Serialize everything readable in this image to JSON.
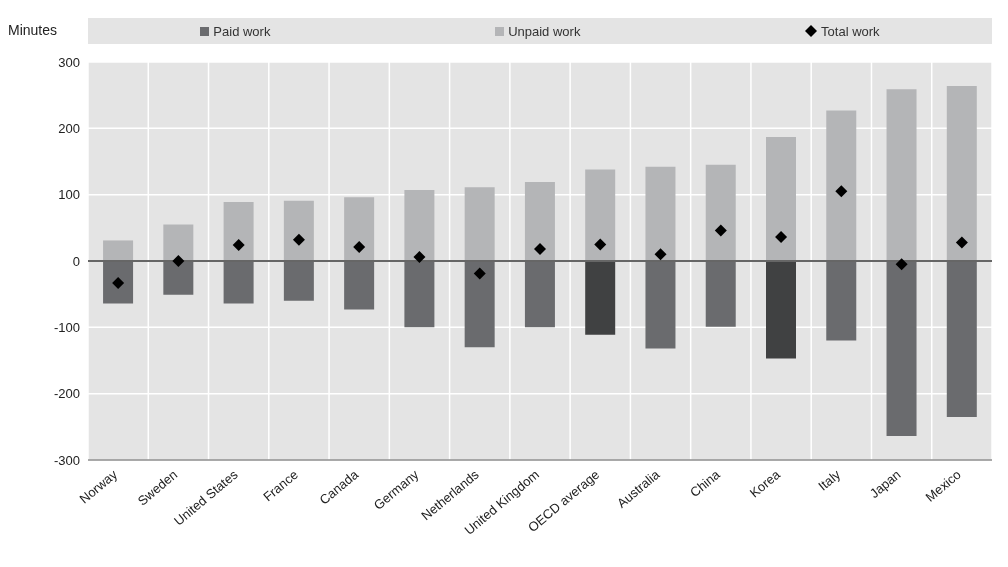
{
  "chart_data": {
    "type": "bar",
    "ylabel": "Minutes",
    "stacked": true,
    "categories": [
      "Norway",
      "Sweden",
      "United States",
      "France",
      "Canada",
      "Germany",
      "Netherlands",
      "United Kingdom",
      "OECD average",
      "Australia",
      "China",
      "Korea",
      "Italy",
      "Japan",
      "Mexico"
    ],
    "series": [
      {
        "name": "Paid work",
        "color": "#6a6b6e",
        "colors": [
          "#6a6b6e",
          "#6a6b6e",
          "#6a6b6e",
          "#6a6b6e",
          "#6a6b6e",
          "#6a6b6e",
          "#6a6b6e",
          "#6a6b6e",
          "#404142",
          "#6a6b6e",
          "#6a6b6e",
          "#404142",
          "#6a6b6e",
          "#6a6b6e",
          "#6a6b6e"
        ],
        "values": [
          -64,
          -51,
          -64,
          -60,
          -73,
          -100,
          -130,
          -100,
          -111,
          -132,
          -99,
          -147,
          -120,
          -264,
          -235
        ]
      },
      {
        "name": "Unpaid work",
        "color": "#b4b5b7",
        "values": [
          31,
          55,
          89,
          91,
          96,
          107,
          111,
          119,
          138,
          142,
          145,
          187,
          227,
          259,
          264
        ]
      },
      {
        "name": "Total work",
        "type": "scatter",
        "color": "#000000",
        "marker": "diamond",
        "values": [
          -33,
          0,
          24,
          32,
          21,
          6,
          -19,
          18,
          25,
          10,
          46,
          36,
          105,
          -5,
          28
        ]
      }
    ],
    "ylim": [
      -300,
      300
    ],
    "yticks": [
      -300,
      -200,
      -100,
      0,
      100,
      200,
      300
    ],
    "grid": true,
    "legend": "top"
  }
}
